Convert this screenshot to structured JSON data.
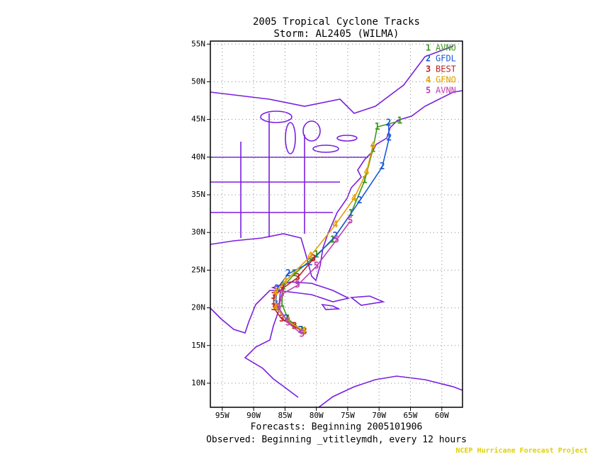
{
  "title": "2005 Tropical Cyclone Tracks",
  "subtitle": "Storm: AL2405 (WILMA)",
  "map": {
    "lon_range": [
      -96.9,
      -56.7
    ],
    "lat_range": [
      6.8,
      55.4
    ],
    "lon_ticks": [
      {
        "value": -95,
        "label": "95W"
      },
      {
        "value": -90,
        "label": "90W"
      },
      {
        "value": -85,
        "label": "85W"
      },
      {
        "value": -80,
        "label": "80W"
      },
      {
        "value": -75,
        "label": "75W"
      },
      {
        "value": -70,
        "label": "70W"
      },
      {
        "value": -65,
        "label": "65W"
      },
      {
        "value": -60,
        "label": "60W"
      }
    ],
    "lat_ticks": [
      {
        "value": 10,
        "label": "10N"
      },
      {
        "value": 15,
        "label": "15N"
      },
      {
        "value": 20,
        "label": "20N"
      },
      {
        "value": 25,
        "label": "25N"
      },
      {
        "value": 30,
        "label": "30N"
      },
      {
        "value": 35,
        "label": "35N"
      },
      {
        "value": 40,
        "label": "40N"
      },
      {
        "value": 45,
        "label": "45N"
      },
      {
        "value": 50,
        "label": "50N"
      },
      {
        "value": 55,
        "label": "55N"
      }
    ],
    "grid": true
  },
  "tracks": [
    {
      "marker": "1",
      "name": "AVNO",
      "color": "#3a9a1a",
      "points": [
        [
          -82.3,
          17.0
        ],
        [
          -84.5,
          18.5
        ],
        [
          -85.5,
          20.5
        ],
        [
          -85.3,
          22.8
        ],
        [
          -83.5,
          24.5
        ],
        [
          -80,
          27
        ],
        [
          -77.4,
          29
        ],
        [
          -74.5,
          32.5
        ],
        [
          -72.3,
          36.9
        ],
        [
          -71,
          41
        ],
        [
          -70.3,
          44
        ],
        [
          -66.7,
          44.8
        ]
      ]
    },
    {
      "marker": "2",
      "name": "GFDL",
      "color": "#1a5ad8",
      "points": [
        [
          -82.5,
          17.0
        ],
        [
          -84.8,
          18.5
        ],
        [
          -86.5,
          20.5
        ],
        [
          -86.3,
          22.5
        ],
        [
          -84.5,
          24.5
        ],
        [
          -81,
          26
        ],
        [
          -77,
          29.5
        ],
        [
          -73.1,
          34.2
        ],
        [
          -69.5,
          38.7
        ],
        [
          -68.4,
          42.5
        ],
        [
          -68.5,
          44.5
        ]
      ]
    },
    {
      "marker": "3",
      "name": "BEST",
      "color": "#c02020",
      "points": [
        [
          -81.9,
          16.8
        ],
        [
          -83.5,
          17.5
        ],
        [
          -85.5,
          18.5
        ],
        [
          -86.8,
          20.0
        ],
        [
          -86.8,
          21.5
        ],
        [
          -85.5,
          22.5
        ],
        [
          -83,
          24
        ],
        [
          -80.5,
          26.5
        ]
      ]
    },
    {
      "marker": "4",
      "name": "GFNO",
      "color": "#e0a000",
      "points": [
        [
          -82,
          16.9
        ],
        [
          -84.5,
          18.2
        ],
        [
          -86.5,
          20
        ],
        [
          -86.5,
          22
        ],
        [
          -85,
          23.5
        ],
        [
          -81,
          26.8
        ],
        [
          -77,
          31
        ],
        [
          -74,
          34.5
        ],
        [
          -72,
          38
        ],
        [
          -71,
          41.5
        ]
      ]
    },
    {
      "marker": "5",
      "name": "AVNN",
      "color": "#c040b0",
      "points": [
        [
          -82.3,
          16.5
        ],
        [
          -84.5,
          18
        ],
        [
          -86,
          20
        ],
        [
          -85.5,
          21.8
        ],
        [
          -83,
          23
        ],
        [
          -80,
          25.5
        ],
        [
          -76.8,
          29
        ],
        [
          -74.6,
          31.5
        ]
      ]
    }
  ],
  "footer": {
    "forecasts": "Forecasts: Beginning 2005101906",
    "observed": "Observed: Beginning _vtitleymdh, every 12 hours",
    "credit": "NCEP Hurricane Forecast Project"
  }
}
